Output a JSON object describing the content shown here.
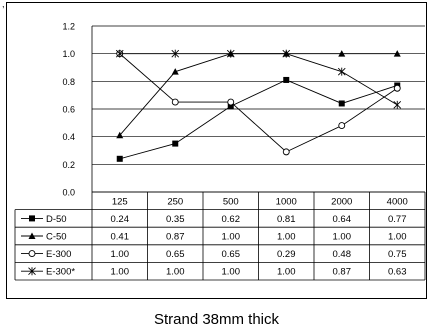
{
  "chart_data": {
    "type": "line",
    "title": "",
    "xlabel": "",
    "ylabel": "",
    "ylim": [
      0,
      1.2
    ],
    "yticks": [
      "0.0",
      "0.2",
      "0.4",
      "0.6",
      "0.8",
      "1.0",
      "1.2"
    ],
    "categories": [
      "125",
      "250",
      "500",
      "1000",
      "2000",
      "4000"
    ],
    "grid": "horizontal",
    "legend": "data-table-left",
    "series": [
      {
        "name": "D-50",
        "marker": "filled-square",
        "values": [
          0.24,
          0.35,
          0.62,
          0.81,
          0.64,
          0.77
        ],
        "labels": [
          "0.24",
          "0.35",
          "0.62",
          "0.81",
          "0.64",
          "0.77"
        ]
      },
      {
        "name": "C-50",
        "marker": "filled-triangle",
        "values": [
          0.41,
          0.87,
          1.0,
          1.0,
          1.0,
          1.0
        ],
        "labels": [
          "0.41",
          "0.87",
          "1.00",
          "1.00",
          "1.00",
          "1.00"
        ]
      },
      {
        "name": "E-300",
        "marker": "open-circle",
        "values": [
          1.0,
          0.65,
          0.65,
          0.29,
          0.48,
          0.75
        ],
        "labels": [
          "1.00",
          "0.65",
          "0.65",
          "0.29",
          "0.48",
          "0.75"
        ]
      },
      {
        "name": "E-300*",
        "marker": "asterisk",
        "values": [
          1.0,
          1.0,
          1.0,
          1.0,
          0.87,
          0.63
        ],
        "labels": [
          "1.00",
          "1.00",
          "1.00",
          "1.00",
          "0.87",
          "0.63"
        ]
      }
    ],
    "colors": {
      "line": "#000000",
      "grid": "#000000",
      "background": "#ffffff"
    }
  },
  "caption": "Strand 38mm thick",
  "corner_mark": ","
}
